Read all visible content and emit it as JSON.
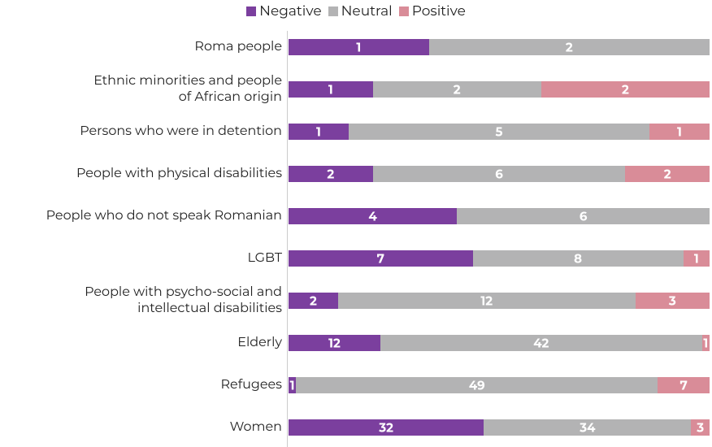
{
  "chart_data": {
    "type": "stacked-bar-100",
    "categories": [
      "Roma people",
      "Ethnic minorities and people\nof African origin",
      "Persons who were in detention",
      "People with physical disabilities",
      "People who do not speak Romanian",
      "LGBT",
      "People with psycho-social and\nintellectual disabilities",
      "Elderly",
      "Refugees",
      "Women"
    ],
    "series": [
      {
        "name": "Negative",
        "color": "#7b3f9e",
        "values": [
          1,
          1,
          1,
          2,
          4,
          7,
          2,
          12,
          1,
          32
        ]
      },
      {
        "name": "Neutral",
        "color": "#b3b3b4",
        "values": [
          2,
          2,
          5,
          6,
          6,
          8,
          12,
          42,
          49,
          34
        ]
      },
      {
        "name": "Positive",
        "color": "#d98c98",
        "values": [
          null,
          2,
          1,
          2,
          null,
          1,
          3,
          1,
          7,
          3
        ]
      }
    ],
    "legend": "top"
  }
}
